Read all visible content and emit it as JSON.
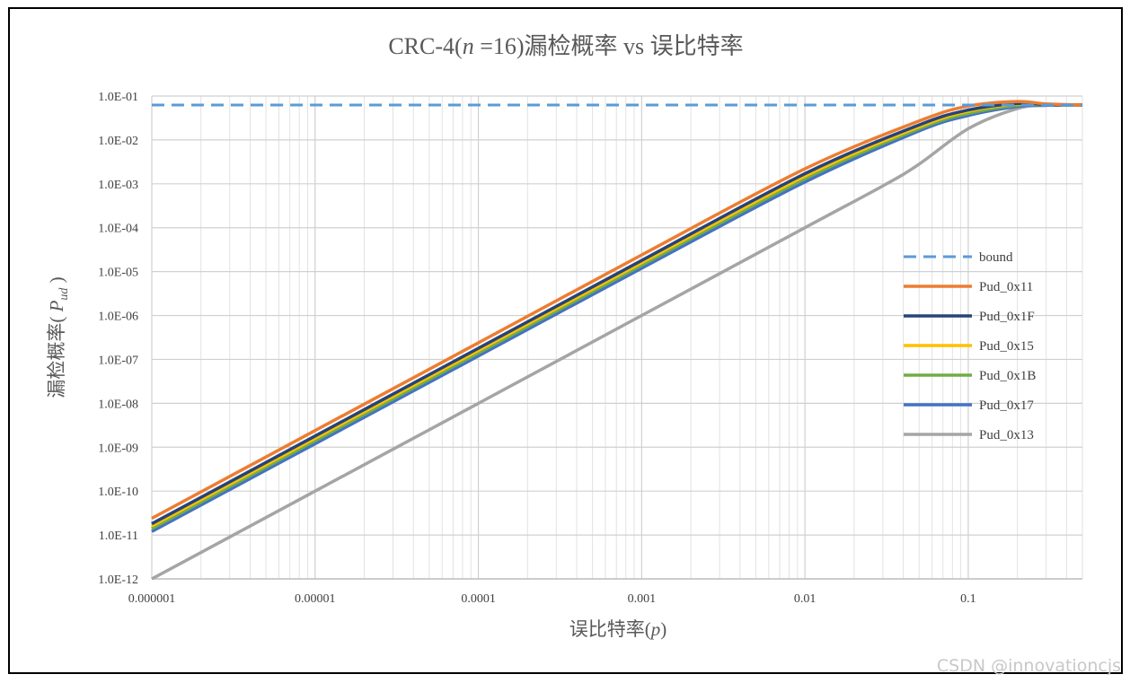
{
  "watermark": "CSDN @innovationcjs",
  "chart_data": {
    "type": "line",
    "title": {
      "prefix": "CRC-4(",
      "n": "n",
      "mid": " =16)漏检概率  vs 误比特率"
    },
    "xlabel": {
      "prefix": "误比特率(",
      "var": "p",
      "suffix": ")"
    },
    "ylabel": {
      "prefix": "漏检概率( ",
      "var": "P",
      "sub": "ud",
      "suffix": " )"
    },
    "x_scale": "log",
    "y_scale": "log",
    "xlim": [
      1e-06,
      0.5
    ],
    "ylim": [
      1e-12,
      0.1
    ],
    "x_ticks": [
      "0.000001",
      "0.00001",
      "0.0001",
      "0.001",
      "0.01",
      "0.1"
    ],
    "y_ticks": [
      "1.0E-12",
      "1.0E-11",
      "1.0E-10",
      "1.0E-09",
      "1.0E-08",
      "1.0E-07",
      "1.0E-06",
      "1.0E-05",
      "1.0E-04",
      "1.0E-03",
      "1.0E-02",
      "1.0E-01"
    ],
    "grid": true,
    "legend_position": "right",
    "series": [
      {
        "name": "bound",
        "color": "#5b9bd5",
        "dash": true,
        "x": [
          1e-06,
          1e-05,
          0.0001,
          0.001,
          0.01,
          0.1,
          0.5
        ],
        "y": [
          0.0625,
          0.0625,
          0.0625,
          0.0625,
          0.0625,
          0.0625,
          0.0625
        ]
      },
      {
        "name": "Pud_0x11",
        "color": "#ed7d31",
        "x": [
          1e-06,
          1e-05,
          0.0001,
          0.001,
          0.01,
          0.05,
          0.1,
          0.2,
          0.3,
          0.5
        ],
        "y": [
          2.4e-11,
          2.4e-09,
          2.4e-07,
          2.4e-05,
          0.0022,
          0.027,
          0.059,
          0.075,
          0.066,
          0.0625
        ]
      },
      {
        "name": "Pud_0x1F",
        "color": "#264478",
        "x": [
          1e-06,
          1e-05,
          0.0001,
          0.001,
          0.01,
          0.05,
          0.1,
          0.2,
          0.3,
          0.5
        ],
        "y": [
          1.8e-11,
          1.8e-09,
          1.8e-07,
          1.8e-05,
          0.0017,
          0.022,
          0.048,
          0.068,
          0.064,
          0.0625
        ]
      },
      {
        "name": "Pud_0x15",
        "color": "#ffc000",
        "x": [
          1e-06,
          1e-05,
          0.0001,
          0.001,
          0.01,
          0.05,
          0.1,
          0.2,
          0.3,
          0.5
        ],
        "y": [
          1.6e-11,
          1.6e-09,
          1.6e-07,
          1.6e-05,
          0.0015,
          0.02,
          0.045,
          0.066,
          0.064,
          0.0625
        ]
      },
      {
        "name": "Pud_0x1B",
        "color": "#70ad47",
        "x": [
          1e-06,
          1e-05,
          0.0001,
          0.001,
          0.01,
          0.05,
          0.1,
          0.2,
          0.3,
          0.5
        ],
        "y": [
          1.4e-11,
          1.4e-09,
          1.4e-07,
          1.4e-05,
          0.0013,
          0.018,
          0.04,
          0.062,
          0.063,
          0.0625
        ]
      },
      {
        "name": "Pud_0x17",
        "color": "#4472c4",
        "x": [
          1e-06,
          1e-05,
          0.0001,
          0.001,
          0.01,
          0.05,
          0.1,
          0.2,
          0.3,
          0.5
        ],
        "y": [
          1.2e-11,
          1.2e-09,
          1.2e-07,
          1.2e-05,
          0.0011,
          0.016,
          0.036,
          0.058,
          0.062,
          0.0625
        ]
      },
      {
        "name": "Pud_0x13",
        "color": "#a5a5a5",
        "x": [
          1e-06,
          1e-05,
          0.0001,
          0.001,
          0.01,
          0.03,
          0.05,
          0.1,
          0.2,
          0.3,
          0.5
        ],
        "y": [
          1e-12,
          1e-10,
          1e-08,
          1e-06,
          0.0001,
          0.0009,
          0.0028,
          0.018,
          0.052,
          0.061,
          0.0625
        ]
      }
    ]
  }
}
